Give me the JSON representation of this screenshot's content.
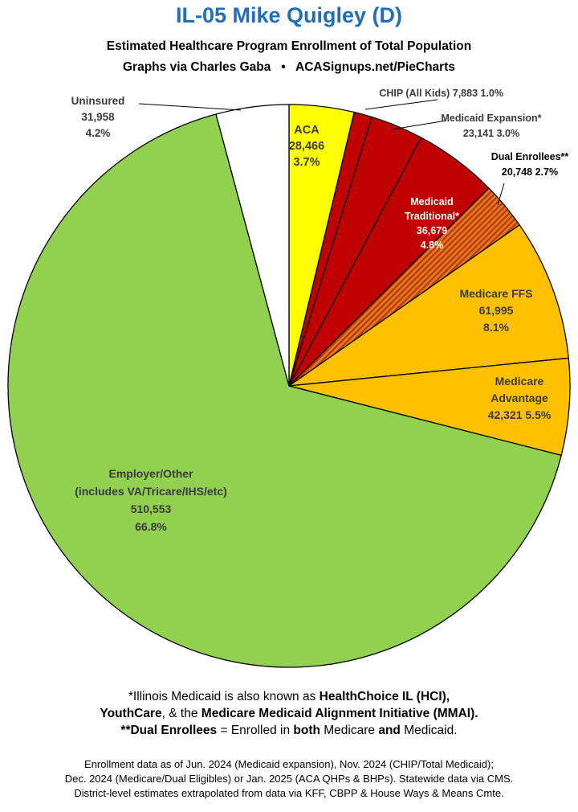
{
  "header": {
    "title": "IL-05 Mike Quigley (D)",
    "subtitle": "Estimated Healthcare Program Enrollment of Total Population",
    "credit": "Graphs via Charles Gaba   •   ACASignups.net/PieCharts"
  },
  "chart_data": {
    "type": "pie",
    "title": "IL-05 Mike Quigley (D)",
    "start": "12 o'clock, clockwise",
    "slices": [
      {
        "name": "ACA",
        "value": 28466,
        "percent": "3.7%",
        "color": "#ffff00",
        "label_lines": [
          "ACA",
          "28,466",
          "3.7%"
        ],
        "text_color": "#3a3a3a"
      },
      {
        "name": "CHIP (All Kids)",
        "value": 7883,
        "percent": "1.0%",
        "color": "#c00000",
        "label_lines": [
          "CHIP (All Kids) 7,883 1.0%"
        ],
        "text_color": "#3a3a3a"
      },
      {
        "name": "Medicaid Expansion*",
        "value": 23141,
        "percent": "3.0%",
        "color": "#c00000",
        "label_lines": [
          "Medicaid Expansion*",
          "23,141 3.0%"
        ],
        "text_color": "#3a3a3a"
      },
      {
        "name": "Medicaid Traditional*",
        "value": 36679,
        "percent": "4.8%",
        "color": "#c00000",
        "label_lines": [
          "Medicaid",
          "Traditional*",
          "36,679",
          "4.8%"
        ],
        "text_color": "#ffffff"
      },
      {
        "name": "Dual Enrollees**",
        "value": 20748,
        "percent": "2.7%",
        "color": "#e87722",
        "pattern": "stripes",
        "label_lines": [
          "Dual Enrollees**",
          "20,748 2.7%"
        ],
        "text_color": "#000000"
      },
      {
        "name": "Medicare FFS",
        "value": 61995,
        "percent": "8.1%",
        "color": "#ffc000",
        "label_lines": [
          "Medicare FFS",
          "61,995",
          "8.1%"
        ],
        "text_color": "#3a3a3a"
      },
      {
        "name": "Medicare Advantage",
        "value": 42321,
        "percent": "5.5%",
        "color": "#ffc000",
        "label_lines": [
          "Medicare",
          "Advantage",
          "42,321 5.5%"
        ],
        "text_color": "#3a3a3a"
      },
      {
        "name": "Employer/Other (includes VA/Tricare/IHS/etc)",
        "value": 510553,
        "percent": "66.8%",
        "color": "#92d050",
        "label_lines": [
          "Employer/Other",
          "(includes VA/Tricare/IHS/etc)",
          "510,553",
          "66.8%"
        ],
        "text_color": "#3a3a3a"
      },
      {
        "name": "Uninsured",
        "value": 31958,
        "percent": "4.2%",
        "color": "#ffffff",
        "label_lines": [
          "Uninsured",
          "31,958",
          "4.2%"
        ],
        "text_color": "#3a3a3a"
      }
    ]
  },
  "footnotes": {
    "line1_pre": "*Illinois Medicaid is also known as ",
    "line1_bold": "HealthChoice IL (HCI),",
    "line2_bold1": "YouthCare",
    "line2_mid": ", & the ",
    "line2_bold2": "Medicare Medicaid Alignment Initiative (MMAI).",
    "line3_bold1": "**Dual Enrollees",
    "line3_mid1": " = Enrolled in ",
    "line3_bold2": "both",
    "line3_mid2": " Medicare ",
    "line3_bold3": "and",
    "line3_end": " Medicaid."
  },
  "sources": {
    "line1": "Enrollment data as of Jun. 2024 (Medicaid expansion), Nov. 2024 (CHIP/Total Medicaid);",
    "line2": "Dec. 2024 (Medicare/Dual Eligibles) or Jan. 2025 (ACA QHPs & BHPs). Statewide data via CMS.",
    "line3": "District-level estimates extrapolated from data via KFF, CBPP & House Ways & Means Cmte."
  }
}
